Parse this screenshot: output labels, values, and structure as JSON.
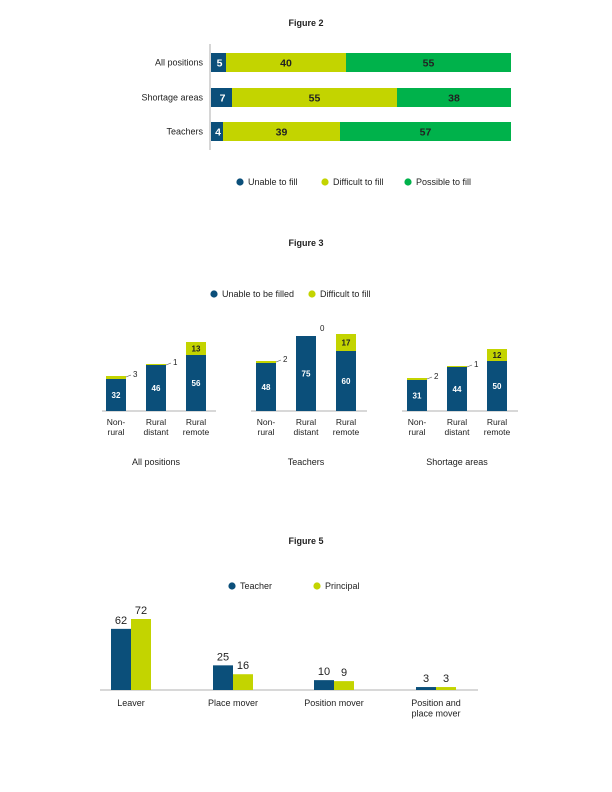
{
  "colors": {
    "dark": "#0b4f7a",
    "lime": "#c3d400",
    "green": "#00b24b",
    "axis": "#999999",
    "text": "#222222"
  },
  "chart_data": [
    {
      "type": "bar",
      "orientation": "horizontal",
      "stacked": true,
      "title": "Figure 2",
      "categories": [
        "All positions",
        "Shortage areas",
        "Teachers"
      ],
      "series": [
        {
          "name": "Unable to fill",
          "color": "#0b4f7a",
          "values": [
            5,
            7,
            4
          ]
        },
        {
          "name": "Difficult to fill",
          "color": "#c3d400",
          "values": [
            40,
            55,
            39
          ]
        },
        {
          "name": "Possible to fill",
          "color": "#00b24b",
          "values": [
            55,
            38,
            57
          ]
        }
      ],
      "xlim": [
        0,
        100
      ],
      "legend": "bottom"
    },
    {
      "type": "bar",
      "stacked": true,
      "title": "Figure 3",
      "legend": "top",
      "series_names": [
        "Unable to be filled",
        "Difficult to fill"
      ],
      "series_colors": [
        "#0b4f7a",
        "#c3d400"
      ],
      "ylim": [
        0,
        80
      ],
      "groups": [
        {
          "name": "All positions",
          "categories": [
            "Non-\nrural",
            "Rural\ndistant",
            "Rural\nremote"
          ],
          "unable": [
            32,
            46,
            56
          ],
          "difficult": [
            3,
            1,
            13
          ]
        },
        {
          "name": "Teachers",
          "categories": [
            "Non-\nrural",
            "Rural\ndistant",
            "Rural\nremote"
          ],
          "unable": [
            48,
            75,
            60
          ],
          "difficult": [
            2,
            0,
            17
          ]
        },
        {
          "name": "Shortage areas",
          "categories": [
            "Non-\nrural",
            "Rural\ndistant",
            "Rural\nremote"
          ],
          "unable": [
            31,
            44,
            50
          ],
          "difficult": [
            2,
            1,
            12
          ]
        }
      ]
    },
    {
      "type": "bar",
      "title": "Figure 5",
      "legend": "top",
      "categories": [
        "Leaver",
        "Place mover",
        "Position mover",
        "Position and\nplace mover"
      ],
      "series": [
        {
          "name": "Teacher",
          "color": "#0b4f7a",
          "values": [
            62,
            25,
            10,
            3
          ]
        },
        {
          "name": "Principal",
          "color": "#c3d400",
          "values": [
            72,
            16,
            9,
            3
          ]
        }
      ],
      "ylim": [
        0,
        80
      ]
    }
  ]
}
